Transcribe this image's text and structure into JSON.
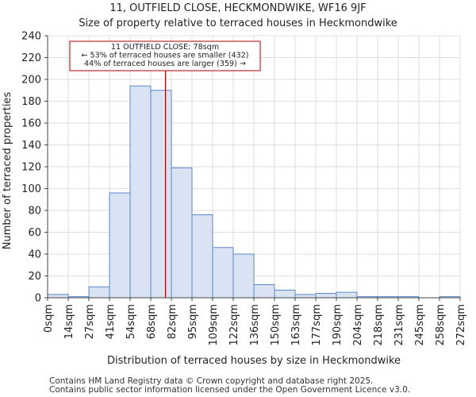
{
  "chart_data": {
    "type": "bar",
    "title": "11, OUTFIELD CLOSE, HECKMONDWIKE, WF16 9JF",
    "subtitle": "Size of property relative to terraced houses in Heckmondwike",
    "xlabel": "Distribution of terraced houses by size in Heckmondwike",
    "ylabel": "Number of terraced properties",
    "ylim": [
      0,
      240
    ],
    "yticks": [
      0,
      20,
      40,
      60,
      80,
      100,
      120,
      140,
      160,
      180,
      200,
      220,
      240
    ],
    "bin_edges": [
      0,
      14,
      27,
      41,
      54,
      68,
      82,
      95,
      109,
      122,
      136,
      150,
      163,
      177,
      190,
      204,
      218,
      231,
      245,
      258,
      272
    ],
    "xtick_labels": [
      "0sqm",
      "14sqm",
      "27sqm",
      "41sqm",
      "54sqm",
      "68sqm",
      "82sqm",
      "95sqm",
      "109sqm",
      "122sqm",
      "136sqm",
      "150sqm",
      "163sqm",
      "177sqm",
      "190sqm",
      "204sqm",
      "218sqm",
      "231sqm",
      "245sqm",
      "258sqm",
      "272sqm"
    ],
    "values": [
      3,
      1,
      10,
      96,
      194,
      190,
      119,
      76,
      46,
      40,
      12,
      7,
      3,
      4,
      5,
      1,
      1,
      1,
      0,
      1
    ],
    "marker": {
      "value": 78,
      "label": "11 OUTFIELD CLOSE: 78sqm"
    },
    "annotation": [
      "11 OUTFIELD CLOSE: 78sqm",
      "← 53% of terraced houses are smaller (432)",
      "44% of terraced houses are larger (359) →"
    ],
    "colors": {
      "bar_fill": "#dae3f3",
      "bar_edge": "#5b87c7",
      "marker": "#aa0000",
      "annotation_border": "#aa0000"
    }
  },
  "footer": {
    "line1": "Contains HM Land Registry data © Crown copyright and database right 2025.",
    "line2": "Contains public sector information licensed under the Open Government Licence v3.0."
  }
}
